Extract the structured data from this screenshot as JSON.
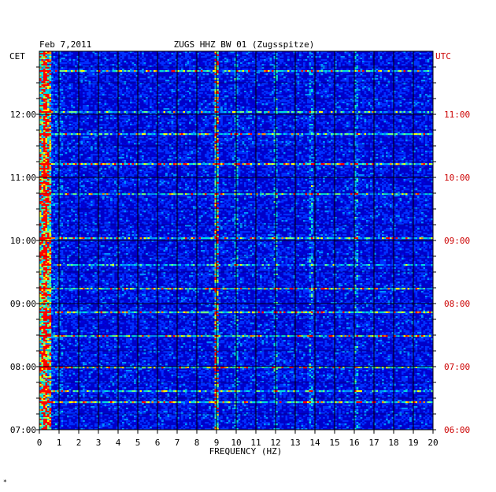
{
  "header": {
    "date": "Feb 7,2011",
    "station": "ZUGS HHZ BW 01 (Zugsspitze)",
    "left_axis_label": "CET",
    "right_axis_label": "UTC"
  },
  "colors": {
    "background": "#0000c8",
    "grid": "#000000",
    "utc_text": "#cc0000",
    "axis_text": "#000000"
  },
  "chart_data": {
    "type": "heatmap",
    "title": "ZUGS HHZ BW 01 (Zugsspitze)",
    "xlabel": "FREQUENCY (HZ)",
    "xlim": [
      0,
      20
    ],
    "x_ticks": [
      0,
      1,
      2,
      3,
      4,
      5,
      6,
      7,
      8,
      9,
      10,
      11,
      12,
      13,
      14,
      15,
      16,
      17,
      18,
      19,
      20
    ],
    "y_left_ticks": [
      "12:00",
      "11:00",
      "10:00",
      "09:00",
      "08:00",
      "07:00"
    ],
    "y_right_ticks": [
      "11:00",
      "10:00",
      "09:00",
      "08:00",
      "07:00",
      "06:00"
    ],
    "y_left_range": [
      "07:00",
      "13:00"
    ],
    "y_right_range": [
      "06:00",
      "12:00"
    ],
    "dominant_lines_hz": [
      0.3,
      9.0,
      10.0,
      12.0,
      13.8,
      16.1
    ],
    "grid": true
  },
  "footer_mark": "*"
}
